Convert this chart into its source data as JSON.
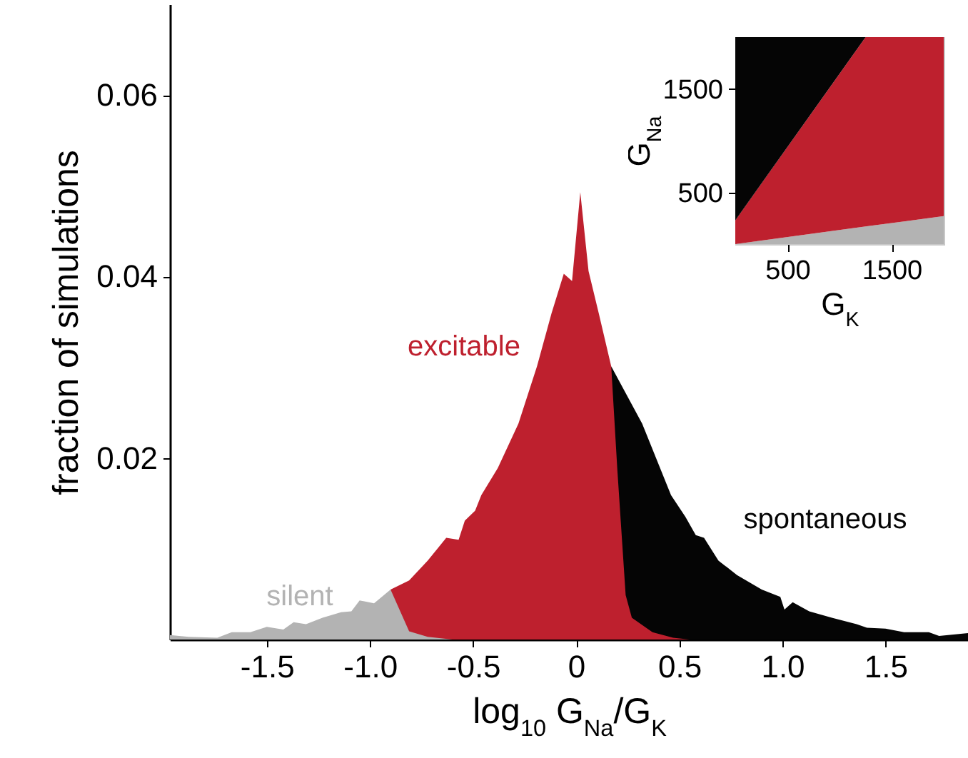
{
  "chart_data": [
    {
      "type": "area",
      "xlabel": "log$_{10}$ G$_{Na}$/G$_{K}$",
      "ylabel": "fraction of simulations",
      "xlim": [
        -1.97,
        1.9
      ],
      "ylim": [
        0,
        0.07
      ],
      "xticks": [
        {
          "value": -1.5,
          "label": "-1.5"
        },
        {
          "value": -1,
          "label": "-1.0"
        },
        {
          "value": -0.5,
          "label": "-0.5"
        },
        0,
        0.5,
        {
          "value": 1,
          "label": "1.0"
        },
        1.5
      ],
      "yticks": [
        0.02,
        0.04,
        0.06
      ],
      "series": [
        {
          "name": "silent",
          "color": "#b3b3b3",
          "x": [
            -1.97,
            -1.88,
            -1.74,
            -1.67,
            -1.58,
            -1.5,
            -1.42,
            -1.37,
            -1.31,
            -1.23,
            -1.14,
            -1.09,
            -1.05,
            -0.98,
            -0.9,
            -0.81,
            -0.72,
            -0.6
          ],
          "values": [
            0.0005,
            0.0003,
            0.0002,
            0.0008,
            0.0008,
            0.0014,
            0.0011,
            0.0019,
            0.0017,
            0.0024,
            0.003,
            0.0031,
            0.0043,
            0.004,
            0.0055,
            0.0009,
            0.0003,
            0
          ]
        },
        {
          "name": "excitable",
          "color": "#be202e",
          "x": [
            -0.9,
            -0.81,
            -0.72,
            -0.63,
            -0.57,
            -0.54,
            -0.49,
            -0.46,
            -0.38,
            -0.28,
            -0.19,
            -0.12,
            -0.06,
            -0.02,
            0.02,
            0.06,
            0.11,
            0.17,
            0.2,
            0.24,
            0.27,
            0.37,
            0.47,
            0.55
          ],
          "values": [
            0.0055,
            0.0065,
            0.0087,
            0.0112,
            0.011,
            0.0131,
            0.0142,
            0.0159,
            0.0189,
            0.0238,
            0.0301,
            0.0359,
            0.0403,
            0.0395,
            0.0493,
            0.0406,
            0.0359,
            0.0301,
            0.0186,
            0.0049,
            0.0024,
            0.0008,
            0.0002,
            0
          ]
        },
        {
          "name": "spontaneous",
          "color": "#050505",
          "x": [
            0.05,
            0.17,
            0.32,
            0.46,
            0.53,
            0.58,
            0.62,
            0.69,
            0.78,
            0.9,
            0.99,
            1.01,
            1.05,
            1.13,
            1.24,
            1.36,
            1.41,
            1.5,
            1.59,
            1.71,
            1.76,
            1.9
          ],
          "values": [
            0,
            0.0301,
            0.0238,
            0.0159,
            0.0135,
            0.0115,
            0.0112,
            0.0087,
            0.0071,
            0.0055,
            0.0047,
            0.0033,
            0.0041,
            0.0031,
            0.0024,
            0.0017,
            0.0013,
            0.0012,
            0.0008,
            0.0008,
            0.0004,
            0.0007
          ]
        }
      ]
    },
    {
      "type": "area",
      "stacked": true,
      "xlabel": "G$_{K}$",
      "ylabel": "G$_{Na}$",
      "xlim": [
        0,
        2000
      ],
      "ylim": [
        0,
        2000
      ],
      "xticks": [
        500,
        1500
      ],
      "yticks": [
        500,
        1500
      ],
      "x": [
        0,
        1250,
        2000
      ],
      "series": [
        {
          "color": "#b3b3b3",
          "values": [
            0,
            170,
            270
          ]
        },
        {
          "color": "#be202e",
          "values": [
            230,
            1830,
            1730
          ]
        },
        {
          "color": "#050505",
          "values": [
            1770,
            0,
            0
          ]
        }
      ]
    }
  ]
}
